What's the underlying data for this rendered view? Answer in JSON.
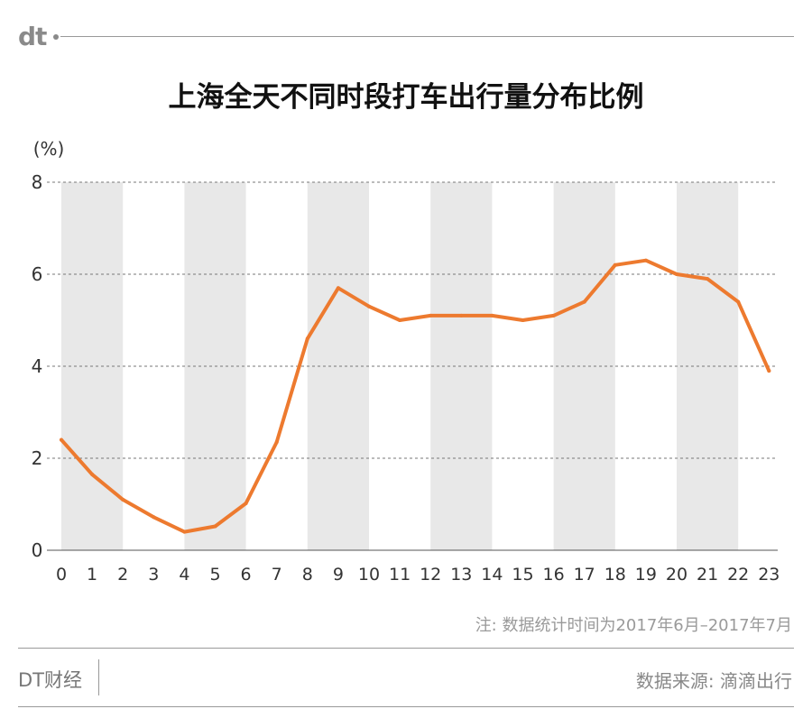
{
  "header": {
    "logo_text": "dt"
  },
  "chart_data": {
    "type": "line",
    "title": "上海全天不同时段打车出行量分布比例",
    "ylabel": "(%)",
    "xlabel": "",
    "categories": [
      "0",
      "1",
      "2",
      "3",
      "4",
      "5",
      "6",
      "7",
      "8",
      "9",
      "10",
      "11",
      "12",
      "13",
      "14",
      "15",
      "16",
      "17",
      "18",
      "19",
      "20",
      "21",
      "22",
      "23"
    ],
    "series": [
      {
        "values": [
          2.4,
          1.65,
          1.1,
          0.72,
          0.4,
          0.52,
          1.02,
          2.35,
          4.6,
          5.7,
          5.3,
          5.0,
          5.1,
          5.1,
          5.1,
          5.0,
          5.1,
          5.4,
          6.2,
          6.3,
          6.0,
          5.9,
          5.4,
          3.9
        ],
        "color": "#ed7a2f"
      }
    ],
    "ylim": [
      0,
      8
    ],
    "yticks": [
      "0",
      "2",
      "4",
      "6",
      "8"
    ],
    "grid": true,
    "band_color": "#e8e8e8"
  },
  "note": "注: 数据统计时间为2017年6月–2017年7月",
  "footer": {
    "left": "DT财经",
    "right": "数据来源: 滴滴出行"
  }
}
